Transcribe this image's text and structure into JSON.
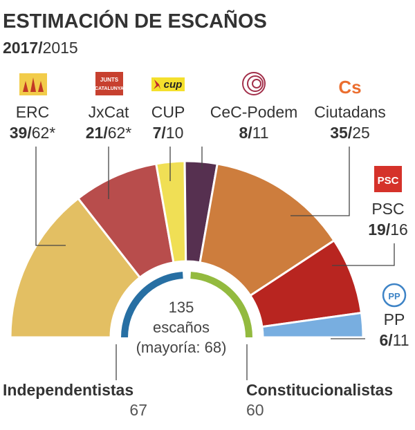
{
  "title": "ESTIMACIÓN DE ESCAÑOS",
  "subtitle": {
    "bold": "2017/",
    "light": "2015"
  },
  "chart_data": {
    "type": "pie",
    "variant": "half-donut",
    "title": "ESTIMACIÓN DE ESCAÑOS",
    "subtitle": "2017/2015",
    "total_seats": 135,
    "parties": [
      {
        "name": "ERC",
        "seats_2017": 39,
        "seats_2015": "62*",
        "color": "#e3bf63",
        "logo": "erc-logo"
      },
      {
        "name": "JxCat",
        "seats_2017": 21,
        "seats_2015": "62*",
        "color": "#b84d4c",
        "logo": "junts-per-catalunya-logo"
      },
      {
        "name": "CUP",
        "seats_2017": 7,
        "seats_2015": "10",
        "color": "#f0df55",
        "logo": "cup-logo"
      },
      {
        "name": "CeC-Podem",
        "seats_2017": 8,
        "seats_2015": "11",
        "color": "#563050",
        "logo": "cec-podem-logo"
      },
      {
        "name": "Ciutadans",
        "seats_2017": 35,
        "seats_2015": "25",
        "color": "#cd7d3d",
        "logo": "ciutadans-logo"
      },
      {
        "name": "PSC",
        "seats_2017": 19,
        "seats_2015": "16",
        "color": "#b82520",
        "logo": "psc-logo"
      },
      {
        "name": "PP",
        "seats_2017": 6,
        "seats_2015": "11",
        "color": "#78aee0",
        "logo": "pp-logo"
      }
    ],
    "center": {
      "line1": "135",
      "line2": "escaños",
      "line3": "(mayoría: 68)"
    },
    "blocs": [
      {
        "name": "Independentistas",
        "seats": 67,
        "color": "#276fa3"
      },
      {
        "name": "Constitucionalistas",
        "seats": 60,
        "color": "#93ba3f"
      }
    ]
  },
  "logos": {
    "psc_text": "PSC",
    "pp_text": "PP",
    "cs_text": "Cs",
    "cup_text": "cup",
    "junts_line1": "JUNTS",
    "junts_line2": "CATALUNYA"
  },
  "colors": {
    "text": "#333333",
    "background": "#ffffff"
  }
}
